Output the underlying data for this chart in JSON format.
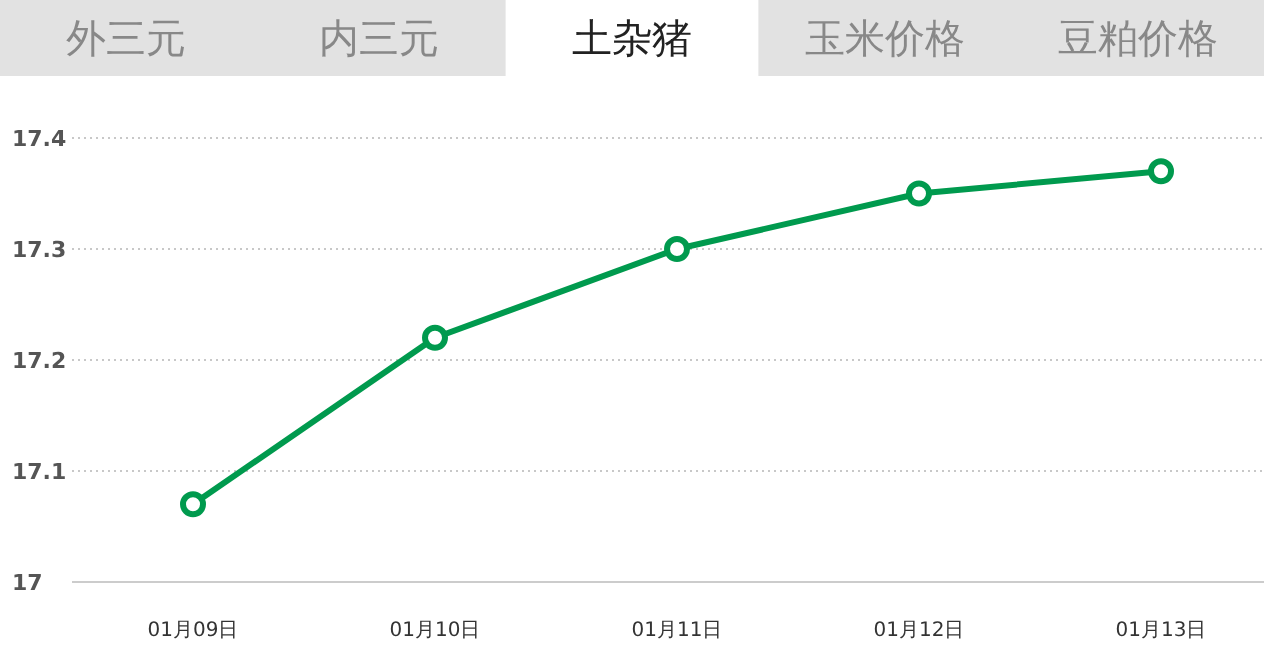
{
  "chart_data": {
    "type": "line",
    "title": "土杂猪",
    "annotations": [
      "外三元",
      "内三元",
      "玉米价格",
      "豆粕价格"
    ],
    "categories": [
      "01月09日",
      "01月10日",
      "01月11日",
      "01月12日",
      "01月13日"
    ],
    "series": [
      {
        "color": "#009a4e",
        "values": [
          17.07,
          17.22,
          17.3,
          17.35,
          17.37
        ]
      }
    ],
    "ylim": [
      17,
      17.4
    ],
    "yticks": [
      17,
      17.1,
      17.2,
      17.3,
      17.4
    ],
    "grid": "y",
    "marker": "circle",
    "line_style": "solid"
  }
}
